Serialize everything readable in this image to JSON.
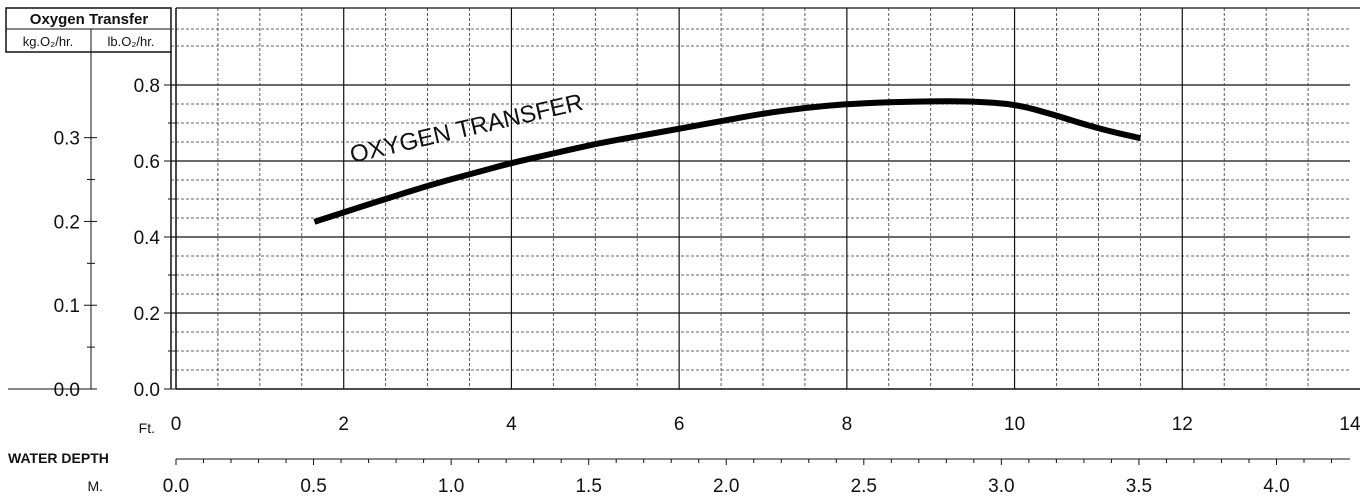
{
  "chart_data": {
    "type": "line",
    "title": "Oxygen Transfer",
    "left_axes": {
      "kg_label": "kg.O₂/hr.",
      "lb_label": "lb.O₂/hr.",
      "kg_ticks": [
        "0.3",
        "0.2",
        "0.1",
        "0.0"
      ],
      "lb_ticks": [
        "0.8",
        "0.6",
        "0.4",
        "0.2",
        "0.0"
      ]
    },
    "x_axis": {
      "label": "WATER DEPTH",
      "ft_unit": "Ft.",
      "m_unit": "M.",
      "ft_ticks": [
        "0",
        "2",
        "4",
        "6",
        "8",
        "10",
        "12",
        "14"
      ],
      "m_ticks": [
        "0.0",
        "0.5",
        "1.0",
        "1.5",
        "2.0",
        "2.5",
        "3.0",
        "3.5",
        "4.0"
      ]
    },
    "xlim": [
      0,
      14
    ],
    "ylim": [
      0,
      0.85
    ],
    "grid": true,
    "series": [
      {
        "name": "OXYGEN TRANSFER",
        "x": [
          1.65,
          2.0,
          2.5,
          3.0,
          3.5,
          4.0,
          4.5,
          5.0,
          5.5,
          6.0,
          6.5,
          7.0,
          7.5,
          8.0,
          8.5,
          9.0,
          9.5,
          10.0,
          10.5,
          11.0,
          11.5
        ],
        "y": [
          0.44,
          0.465,
          0.5,
          0.535,
          0.565,
          0.595,
          0.62,
          0.645,
          0.665,
          0.685,
          0.705,
          0.725,
          0.74,
          0.75,
          0.755,
          0.757,
          0.757,
          0.75,
          0.72,
          0.685,
          0.66
        ]
      }
    ]
  }
}
